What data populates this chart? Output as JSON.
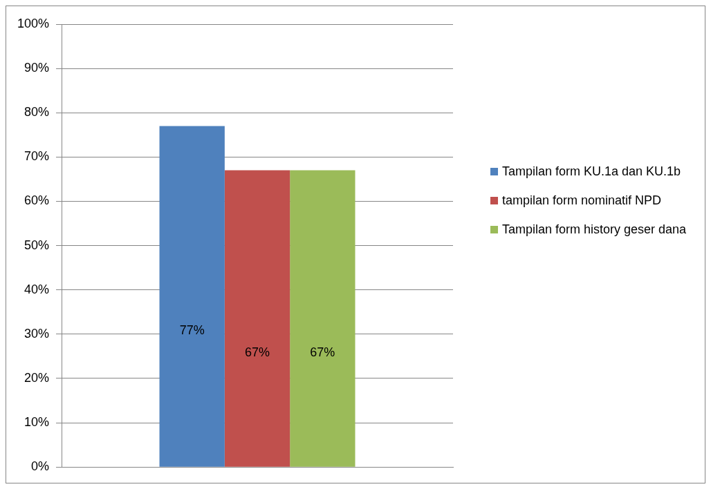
{
  "chart_data": {
    "type": "bar",
    "categories": [
      null
    ],
    "series": [
      {
        "name": "Tampilan form KU.1a dan KU.1b",
        "color": "#4f81bd",
        "values": [
          77
        ],
        "value_labels": [
          "77%"
        ]
      },
      {
        "name": "tampilan form nominatif NPD",
        "color": "#c0504d",
        "values": [
          67
        ],
        "value_labels": [
          "67%"
        ]
      },
      {
        "name": "Tampilan form history geser dana",
        "color": "#9bbb59",
        "values": [
          67
        ],
        "value_labels": [
          "67%"
        ]
      }
    ],
    "ylim": [
      0,
      100
    ],
    "yticks": [
      {
        "value": 0,
        "label": "0%"
      },
      {
        "value": 10,
        "label": "10%"
      },
      {
        "value": 20,
        "label": "20%"
      },
      {
        "value": 30,
        "label": "30%"
      },
      {
        "value": 40,
        "label": "40%"
      },
      {
        "value": 50,
        "label": "50%"
      },
      {
        "value": 60,
        "label": "60%"
      },
      {
        "value": 70,
        "label": "70%"
      },
      {
        "value": 80,
        "label": "80%"
      },
      {
        "value": 90,
        "label": "90%"
      },
      {
        "value": 100,
        "label": "100%"
      }
    ],
    "grid": "y",
    "legend": "right"
  }
}
